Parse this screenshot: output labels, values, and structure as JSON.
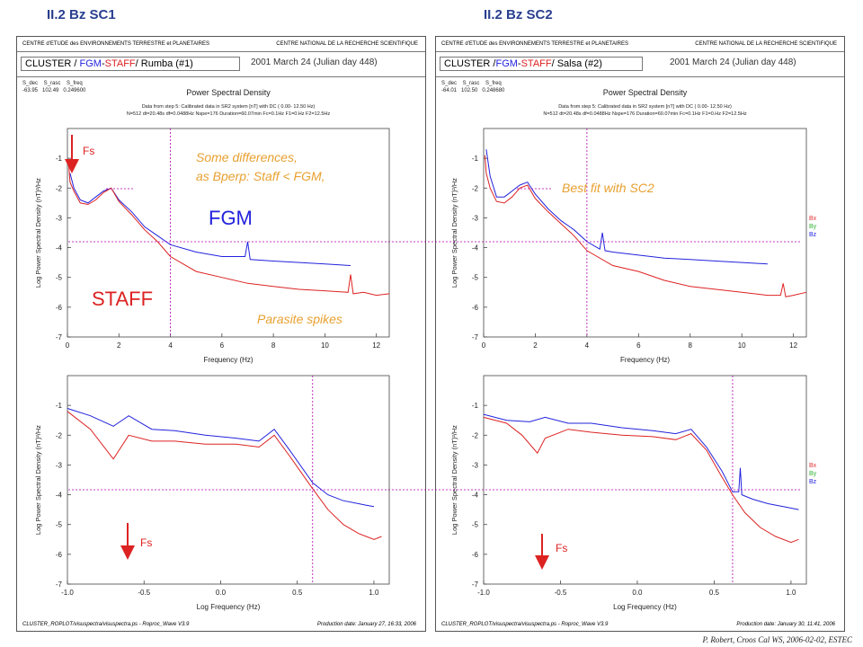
{
  "slide": {
    "title_left": "II.2  Bz  SC1",
    "title_right": "II.2  Bz  SC2",
    "credit": "P. Robert, Croos Cal WS, 2006-02-02, ESTEC"
  },
  "panels": [
    {
      "header_left": "CENTRE d'ETUDE des ENVIRONNEMENTS TERRESTRE et PLANETAIRES",
      "header_right": "CENTRE NATIONAL DE LA RECHERCHE SCIENTIFIQUE",
      "mission_prefix": "CLUSTER / ",
      "mission_fgm": "FGM",
      "mission_dash": "-",
      "mission_staff": "STAFF",
      "mission_suffix": "/ Rumba  (#1)",
      "date": "2001 March 24  (Julian day 448)",
      "param_labels": "S_dec    S_rasc    S_freq",
      "param_values": "-63.95   102.49   0.249600",
      "footer_left": "CLUSTER_ROPLOT/visuspectra/visuspectra.ps  -  Roproc_Wave V3.9",
      "footer_right": "Production date: January 27, 16:33, 2006"
    },
    {
      "header_left": "CENTRE d'ETUDE des ENVIRONNEMENTS TERRESTRE et PLANETAIRES",
      "header_right": "CENTRE NATIONAL DE LA RECHERCHE SCIENTIFIQUE",
      "mission_prefix": "CLUSTER /",
      "mission_fgm": "FGM",
      "mission_dash": "-",
      "mission_staff": "STAFF",
      "mission_suffix": "/ Salsa  (#2)",
      "date": "2001 March 24  (Julian day 448)",
      "param_labels": "S_dec    S_rasc    S_freq",
      "param_values": "-64.01   102.50   0.248680",
      "footer_left": "CLUSTER_ROPLOT/visuspectra/visuspectra.ps  -  Roproc_Wave V3.9",
      "footer_right": "Production date: January 30, 11:41, 2006"
    }
  ],
  "plot_text": {
    "title": "Power Spectral Density",
    "info1": "Data from step 5: Calibrated data in SR2 system [nT] with DC  (  0.00-  12.50 Hz)",
    "info2": "N=512 dt=20.48s df=0.0488Hz Nspe=176 Duration=60.07min Fc=0.1Hz F1=0.Hz F2=12.5Hz",
    "ylabel": "Log Power Spectral Density (nT)²/Hz",
    "xlabel_lin": "Frequency (Hz)",
    "xlabel_log": "Log Frequency (Hz)",
    "legend": [
      "Bx",
      "By",
      "Bz"
    ]
  },
  "annotations": {
    "fs": "Fs",
    "some_diff_1": "Some differences,",
    "some_diff_2": "as Bperp: Staff < FGM,",
    "fgm": "FGM",
    "staff": "STAFF",
    "parasite": "Parasite spikes",
    "best_fit": "Best fit with SC2"
  },
  "colors": {
    "fgm": "#2222dd",
    "staff": "#dd2222",
    "title": "#2a3f8f",
    "annotation": "#e8a030",
    "marker": "#b000b0",
    "legend_bx": "#e03030",
    "legend_by": "#30b030",
    "legend_bz": "#2020e0"
  },
  "chart_data": [
    {
      "type": "line",
      "panel": "SC1",
      "scale": "linear",
      "xlabel": "Frequency (Hz)",
      "ylabel": "Log Power Spectral Density (nT)²/Hz",
      "xlim": [
        0,
        12.5
      ],
      "ylim": [
        -7,
        0
      ],
      "xticks": [
        0,
        2,
        4,
        6,
        8,
        10,
        12
      ],
      "yticks": [
        -7,
        -6,
        -5,
        -4,
        -3,
        -2,
        -1
      ],
      "marker_x": 4,
      "legend": false,
      "series": [
        {
          "name": "FGM",
          "color": "fgm",
          "x": [
            0.1,
            0.25,
            0.5,
            0.8,
            1.1,
            1.4,
            1.7,
            2.0,
            2.5,
            3.0,
            3.5,
            4.0,
            5.0,
            6.0,
            6.9,
            7.0,
            7.1,
            8.0,
            9.0,
            10.0,
            11.0
          ],
          "y": [
            -1.5,
            -2.0,
            -2.4,
            -2.5,
            -2.3,
            -2.1,
            -2.0,
            -2.4,
            -2.8,
            -3.3,
            -3.6,
            -3.9,
            -4.15,
            -4.3,
            -4.3,
            -3.8,
            -4.4,
            -4.45,
            -4.5,
            -4.55,
            -4.6
          ]
        },
        {
          "name": "STAFF",
          "color": "staff",
          "x": [
            0.05,
            0.1,
            0.25,
            0.5,
            0.8,
            1.1,
            1.4,
            1.7,
            2.0,
            2.5,
            3.0,
            3.5,
            4.0,
            5.0,
            6.0,
            7.0,
            8.0,
            9.0,
            10.0,
            10.9,
            11.0,
            11.1,
            11.5,
            12.0,
            12.5
          ],
          "y": [
            -1.2,
            -1.8,
            -2.1,
            -2.5,
            -2.55,
            -2.4,
            -2.15,
            -2.0,
            -2.45,
            -2.9,
            -3.4,
            -3.8,
            -4.3,
            -4.8,
            -5.0,
            -5.2,
            -5.3,
            -5.4,
            -5.45,
            -5.5,
            -4.9,
            -5.55,
            -5.5,
            -5.6,
            -5.55
          ]
        }
      ]
    },
    {
      "type": "line",
      "panel": "SC1",
      "scale": "log",
      "xlabel": "Log Frequency (Hz)",
      "ylabel": "Log Power Spectral Density (nT)²/Hz",
      "xlim": [
        -1.0,
        1.1
      ],
      "ylim": [
        -7,
        0
      ],
      "xticks": [
        -1.0,
        -0.5,
        0.0,
        0.5,
        1.0
      ],
      "yticks": [
        -7,
        -6,
        -5,
        -4,
        -3,
        -2,
        -1
      ],
      "marker_x": 0.6,
      "legend": false,
      "series": [
        {
          "name": "FGM",
          "color": "fgm",
          "x": [
            -1.0,
            -0.85,
            -0.7,
            -0.6,
            -0.45,
            -0.3,
            -0.1,
            0.1,
            0.25,
            0.35,
            0.45,
            0.6,
            0.7,
            0.8,
            0.9,
            0.95,
            1.0
          ],
          "y": [
            -1.1,
            -1.35,
            -1.7,
            -1.35,
            -1.8,
            -1.85,
            -2.0,
            -2.1,
            -2.2,
            -1.8,
            -2.5,
            -3.6,
            -4.0,
            -4.2,
            -4.3,
            -4.35,
            -4.4
          ]
        },
        {
          "name": "STAFF",
          "color": "staff",
          "x": [
            -1.0,
            -0.85,
            -0.7,
            -0.6,
            -0.45,
            -0.3,
            -0.1,
            0.1,
            0.25,
            0.35,
            0.45,
            0.6,
            0.7,
            0.8,
            0.9,
            0.95,
            1.0,
            1.05
          ],
          "y": [
            -1.2,
            -1.8,
            -2.8,
            -2.0,
            -2.2,
            -2.2,
            -2.3,
            -2.3,
            -2.4,
            -2.0,
            -2.7,
            -3.8,
            -4.5,
            -5.0,
            -5.3,
            -5.4,
            -5.5,
            -5.4
          ]
        }
      ]
    },
    {
      "type": "line",
      "panel": "SC2",
      "scale": "linear",
      "xlabel": "Frequency (Hz)",
      "ylabel": "Log Power Spectral Density (nT)²/Hz",
      "xlim": [
        0,
        12.5
      ],
      "ylim": [
        -7,
        0
      ],
      "xticks": [
        0,
        2,
        4,
        6,
        8,
        10,
        12
      ],
      "yticks": [
        -7,
        -6,
        -5,
        -4,
        -3,
        -2,
        -1
      ],
      "marker_x": 4,
      "legend": true,
      "series": [
        {
          "name": "FGM",
          "color": "fgm",
          "x": [
            0.1,
            0.25,
            0.5,
            0.8,
            1.1,
            1.4,
            1.7,
            2.0,
            2.5,
            3.0,
            3.5,
            4.0,
            4.5,
            4.6,
            4.7,
            5.0,
            6.0,
            7.0,
            8.0,
            9.0,
            10.0,
            11.0
          ],
          "y": [
            -0.7,
            -1.6,
            -2.3,
            -2.3,
            -2.1,
            -1.9,
            -1.8,
            -2.2,
            -2.7,
            -3.1,
            -3.4,
            -3.8,
            -4.05,
            -3.5,
            -4.1,
            -4.15,
            -4.25,
            -4.35,
            -4.4,
            -4.45,
            -4.5,
            -4.55
          ]
        },
        {
          "name": "STAFF",
          "color": "staff",
          "x": [
            0.05,
            0.1,
            0.25,
            0.5,
            0.8,
            1.1,
            1.4,
            1.7,
            2.0,
            2.5,
            3.0,
            3.5,
            4.0,
            5.0,
            6.0,
            7.0,
            8.0,
            9.0,
            10.0,
            11.0,
            11.5,
            11.6,
            11.7,
            12.0,
            12.5
          ],
          "y": [
            -0.9,
            -1.5,
            -2.0,
            -2.45,
            -2.5,
            -2.3,
            -2.0,
            -1.9,
            -2.35,
            -2.8,
            -3.2,
            -3.6,
            -4.1,
            -4.6,
            -4.8,
            -5.1,
            -5.3,
            -5.4,
            -5.5,
            -5.6,
            -5.6,
            -5.2,
            -5.65,
            -5.6,
            -5.5
          ]
        }
      ]
    },
    {
      "type": "line",
      "panel": "SC2",
      "scale": "log",
      "xlabel": "Log Frequency (Hz)",
      "ylabel": "Log Power Spectral Density (nT)²/Hz",
      "xlim": [
        -1.0,
        1.1
      ],
      "ylim": [
        -7,
        0
      ],
      "xticks": [
        -1.0,
        -0.5,
        0.0,
        0.5,
        1.0
      ],
      "yticks": [
        -7,
        -6,
        -5,
        -4,
        -3,
        -2,
        -1
      ],
      "marker_x": 0.62,
      "legend": true,
      "series": [
        {
          "name": "FGM",
          "color": "fgm",
          "x": [
            -1.0,
            -0.85,
            -0.7,
            -0.6,
            -0.45,
            -0.3,
            -0.1,
            0.1,
            0.25,
            0.35,
            0.45,
            0.55,
            0.62,
            0.66,
            0.67,
            0.68,
            0.75,
            0.85,
            0.95,
            1.05
          ],
          "y": [
            -1.3,
            -1.5,
            -1.55,
            -1.4,
            -1.6,
            -1.6,
            -1.75,
            -1.85,
            -1.95,
            -1.8,
            -2.4,
            -3.2,
            -3.9,
            -3.9,
            -3.1,
            -4.0,
            -4.15,
            -4.3,
            -4.4,
            -4.5
          ]
        },
        {
          "name": "STAFF",
          "color": "staff",
          "x": [
            -1.0,
            -0.85,
            -0.75,
            -0.65,
            -0.6,
            -0.45,
            -0.3,
            -0.1,
            0.1,
            0.25,
            0.35,
            0.45,
            0.55,
            0.62,
            0.7,
            0.8,
            0.9,
            1.0,
            1.05
          ],
          "y": [
            -1.4,
            -1.6,
            -2.0,
            -2.6,
            -2.1,
            -1.8,
            -1.9,
            -2.0,
            -2.05,
            -2.15,
            -1.95,
            -2.5,
            -3.4,
            -4.0,
            -4.6,
            -5.1,
            -5.4,
            -5.6,
            -5.5
          ]
        }
      ]
    }
  ]
}
